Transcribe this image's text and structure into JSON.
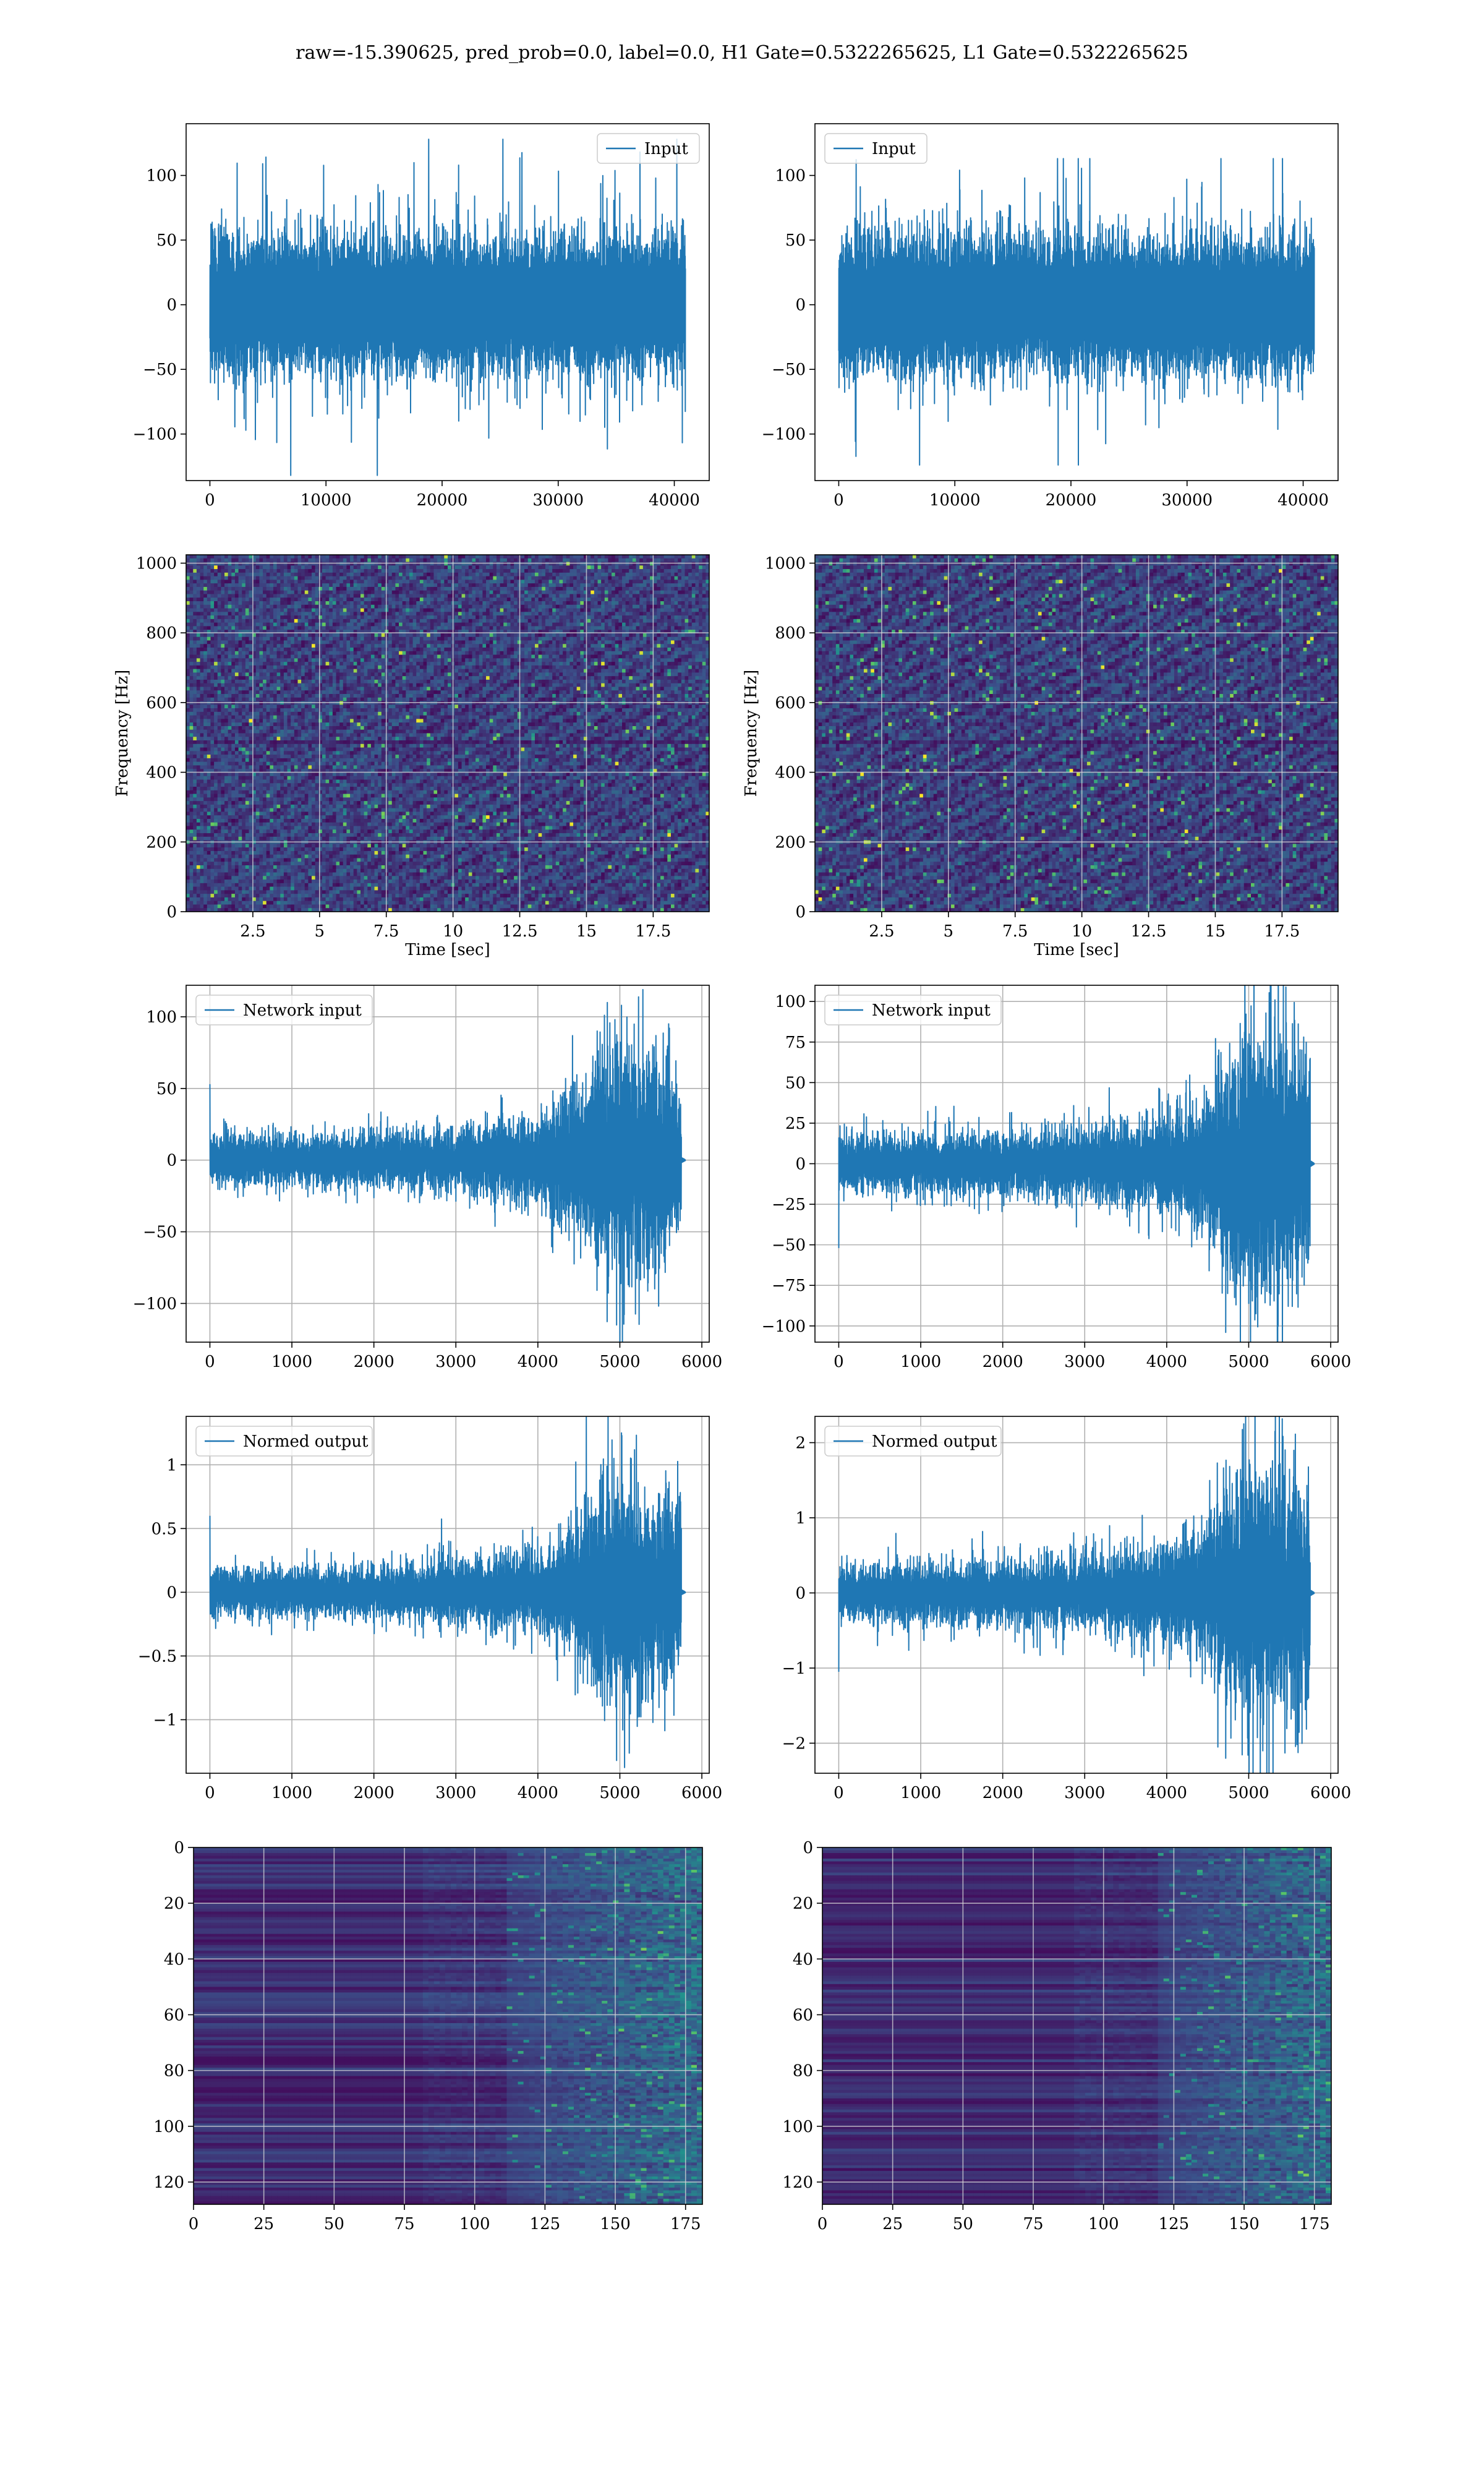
{
  "figure": {
    "suptitle": "raw=-15.390625, pred_prob=0.0, label=0.0, H1 Gate=0.5322265625, L1 Gate=0.5322265625"
  },
  "colors": {
    "line": "#1f77b4",
    "grid": "#b0b0b0",
    "viridis_dark": "#440154",
    "viridis_mid": "#21918c",
    "viridis_bright": "#fde725"
  },
  "chart_data": [
    {
      "id": "row1-left",
      "type": "line",
      "legend": [
        "Input"
      ],
      "legend_loc": "upper right",
      "xlim": [
        -2048,
        43008
      ],
      "ylim": [
        -136,
        140
      ],
      "xticks": [
        0,
        10000,
        20000,
        30000,
        40000
      ],
      "yticks": [
        -100,
        -50,
        0,
        50,
        100
      ],
      "x_range": [
        0,
        40960
      ],
      "envelope": {
        "typical": 40,
        "peak_max": 128,
        "peak_min": -132
      },
      "grid": false
    },
    {
      "id": "row1-right",
      "type": "line",
      "legend": [
        "Input"
      ],
      "legend_loc": "upper left",
      "xlim": [
        -2048,
        43008
      ],
      "ylim": [
        -136,
        140
      ],
      "xticks": [
        0,
        10000,
        20000,
        30000,
        40000
      ],
      "yticks": [
        -100,
        -50,
        0,
        50,
        100
      ],
      "x_range": [
        0,
        40960
      ],
      "envelope": {
        "typical": 40,
        "peak_max": 113,
        "peak_min": -124
      },
      "grid": false
    },
    {
      "id": "row2-left",
      "type": "heatmap",
      "colormap": "viridis",
      "xlim": [
        0.0,
        19.6
      ],
      "ylim": [
        0,
        1024
      ],
      "xticks": [
        2.5,
        5.0,
        7.5,
        10.0,
        12.5,
        15.0,
        17.5
      ],
      "yticks": [
        0,
        200,
        400,
        600,
        800,
        1000
      ],
      "xlabel": "Time [sec]",
      "ylabel": "Frequency [Hz]",
      "grid": true
    },
    {
      "id": "row2-right",
      "type": "heatmap",
      "colormap": "viridis",
      "xlim": [
        0.0,
        19.6
      ],
      "ylim": [
        0,
        1024
      ],
      "xticks": [
        2.5,
        5.0,
        7.5,
        10.0,
        12.5,
        15.0,
        17.5
      ],
      "yticks": [
        0,
        200,
        400,
        600,
        800,
        1000
      ],
      "xlabel": "Time [sec]",
      "ylabel": "Frequency [Hz]",
      "grid": true
    },
    {
      "id": "row3-left",
      "type": "line",
      "legend": [
        "Network input"
      ],
      "legend_loc": "upper left",
      "xlim": [
        -290,
        6090
      ],
      "ylim": [
        -127,
        122
      ],
      "xticks": [
        0,
        1000,
        2000,
        3000,
        4000,
        5000,
        6000
      ],
      "yticks": [
        -100,
        -50,
        0,
        50,
        100
      ],
      "x_range": [
        0,
        5800
      ],
      "signal_end": 5750,
      "envelope_points": [
        [
          0,
          12
        ],
        [
          1000,
          12
        ],
        [
          2000,
          13
        ],
        [
          3000,
          15
        ],
        [
          4000,
          22
        ],
        [
          4500,
          35
        ],
        [
          4750,
          55
        ],
        [
          5000,
          60
        ],
        [
          5500,
          52
        ],
        [
          5750,
          40
        ]
      ],
      "extremes": {
        "max": [
          5020,
          108
        ],
        "min": [
          4960,
          -115
        ],
        "start": [
          0,
          53
        ]
      },
      "grid": true
    },
    {
      "id": "row3-right",
      "type": "line",
      "legend": [
        "Network input"
      ],
      "legend_loc": "upper left",
      "xlim": [
        -290,
        6090
      ],
      "ylim": [
        -110,
        110
      ],
      "xticks": [
        0,
        1000,
        2000,
        3000,
        4000,
        5000,
        6000
      ],
      "yticks": [
        -100,
        -75,
        -50,
        -25,
        0,
        25,
        50,
        75,
        100
      ],
      "x_range": [
        0,
        5800
      ],
      "signal_end": 5750,
      "envelope_points": [
        [
          0,
          12
        ],
        [
          1000,
          13
        ],
        [
          2000,
          14
        ],
        [
          3000,
          15
        ],
        [
          4000,
          22
        ],
        [
          4500,
          30
        ],
        [
          4750,
          50
        ],
        [
          5000,
          58
        ],
        [
          5500,
          55
        ],
        [
          5750,
          45
        ]
      ],
      "extremes": {
        "max": [
          5320,
          101
        ],
        "min": [
          4720,
          -104
        ],
        "start": [
          0,
          -52
        ]
      },
      "grid": true
    },
    {
      "id": "row4-left",
      "type": "line",
      "legend": [
        "Normed output"
      ],
      "legend_loc": "upper left",
      "xlim": [
        -290,
        6090
      ],
      "ylim": [
        -1.42,
        1.38
      ],
      "xticks": [
        0,
        1000,
        2000,
        3000,
        4000,
        5000,
        6000
      ],
      "yticks": [
        -1.0,
        -0.5,
        0.0,
        0.5,
        1.0
      ],
      "x_range": [
        0,
        5800
      ],
      "signal_end": 5750,
      "envelope_points": [
        [
          0,
          0.13
        ],
        [
          1000,
          0.13
        ],
        [
          2000,
          0.14
        ],
        [
          3000,
          0.17
        ],
        [
          4000,
          0.24
        ],
        [
          4500,
          0.4
        ],
        [
          4750,
          0.6
        ],
        [
          5000,
          0.65
        ],
        [
          5500,
          0.58
        ],
        [
          5750,
          0.45
        ]
      ],
      "extremes": {
        "max": [
          5020,
          1.25
        ],
        "min": [
          4960,
          -1.32
        ],
        "start": [
          0,
          0.6
        ]
      },
      "grid": true
    },
    {
      "id": "row4-right",
      "type": "line",
      "legend": [
        "Normed output"
      ],
      "legend_loc": "upper left",
      "xlim": [
        -290,
        6090
      ],
      "ylim": [
        -2.4,
        2.35
      ],
      "xticks": [
        0,
        1000,
        2000,
        3000,
        4000,
        5000,
        6000
      ],
      "yticks": [
        -2,
        -1,
        0,
        1,
        2
      ],
      "x_range": [
        0,
        5800
      ],
      "signal_end": 5750,
      "envelope_points": [
        [
          0,
          0.25
        ],
        [
          1000,
          0.28
        ],
        [
          2000,
          0.3
        ],
        [
          3000,
          0.33
        ],
        [
          4000,
          0.48
        ],
        [
          4500,
          0.65
        ],
        [
          4750,
          1.1
        ],
        [
          5000,
          1.25
        ],
        [
          5500,
          1.15
        ],
        [
          5750,
          0.95
        ]
      ],
      "extremes": {
        "max": [
          5320,
          2.15
        ],
        "min": [
          4720,
          -2.2
        ],
        "start": [
          0,
          -1.05
        ]
      },
      "grid": true
    },
    {
      "id": "row5-left",
      "type": "heatmap",
      "colormap": "viridis",
      "xlim": [
        0,
        181
      ],
      "ylim": [
        128,
        0
      ],
      "xticks": [
        0,
        25,
        50,
        75,
        100,
        125,
        150,
        175
      ],
      "yticks": [
        0,
        20,
        40,
        60,
        80,
        100,
        120
      ],
      "activity_onset": 110,
      "grid": true
    },
    {
      "id": "row5-right",
      "type": "heatmap",
      "colormap": "viridis",
      "xlim": [
        0,
        181
      ],
      "ylim": [
        128,
        0
      ],
      "xticks": [
        0,
        25,
        50,
        75,
        100,
        125,
        150,
        175
      ],
      "yticks": [
        0,
        20,
        40,
        60,
        80,
        100,
        120
      ],
      "activity_onset": 118,
      "grid": true
    }
  ]
}
